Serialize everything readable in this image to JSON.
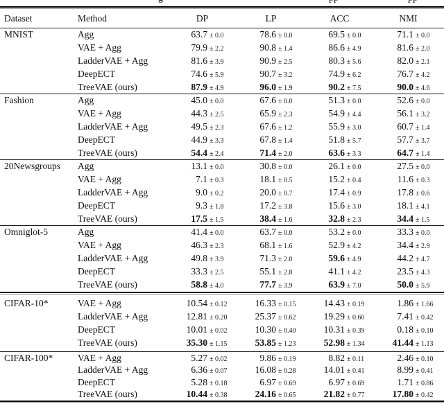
{
  "page": {
    "fragments": [
      "g",
      "pp",
      "pp"
    ]
  },
  "colors": {
    "text": "#111111",
    "rule_black": "#000000",
    "rule_gray": "#9a9a9a"
  },
  "table": {
    "pm_sign": "±",
    "headers": {
      "dataset": "Dataset",
      "method": "Method",
      "metrics": [
        "DP",
        "LP",
        "ACC",
        "NMI"
      ]
    },
    "groups": [
      {
        "dataset": "MNIST",
        "separator_above": "toprule",
        "rows": [
          {
            "method": "Agg",
            "cells": [
              {
                "v": "63.7",
                "s": "0.0",
                "b": false
              },
              {
                "v": "78.6",
                "s": "0.0",
                "b": false
              },
              {
                "v": "69.5",
                "s": "0.0",
                "b": false
              },
              {
                "v": "71.1",
                "s": "0.0",
                "b": false
              }
            ]
          },
          {
            "method": "VAE + Agg",
            "cells": [
              {
                "v": "79.9",
                "s": "2.2",
                "b": false
              },
              {
                "v": "90.8",
                "s": "1.4",
                "b": false
              },
              {
                "v": "86.6",
                "s": "4.9",
                "b": false
              },
              {
                "v": "81.6",
                "s": "2.0",
                "b": false
              }
            ]
          },
          {
            "method": "LadderVAE + Agg",
            "cells": [
              {
                "v": "81.6",
                "s": "3.9",
                "b": false
              },
              {
                "v": "90.9",
                "s": "2.5",
                "b": false
              },
              {
                "v": "80.3",
                "s": "5.6",
                "b": false
              },
              {
                "v": "82.0",
                "s": "2.1",
                "b": false
              }
            ]
          },
          {
            "method": "DeepECT",
            "cells": [
              {
                "v": "74.6",
                "s": "5.9",
                "b": false
              },
              {
                "v": "90.7",
                "s": "3.2",
                "b": false
              },
              {
                "v": "74.9",
                "s": "6.2",
                "b": false
              },
              {
                "v": "76.7",
                "s": "4.2",
                "b": false
              }
            ]
          },
          {
            "method": "TreeVAE (ours)",
            "cells": [
              {
                "v": "87.9",
                "s": "4.9",
                "b": true
              },
              {
                "v": "96.0",
                "s": "1.9",
                "b": true
              },
              {
                "v": "90.2",
                "s": "7.5",
                "b": true
              },
              {
                "v": "90.0",
                "s": "4.6",
                "b": true
              }
            ]
          }
        ]
      },
      {
        "dataset": "Fashion",
        "separator_above": "single",
        "rows": [
          {
            "method": "Agg",
            "cells": [
              {
                "v": "45.0",
                "s": "0.0",
                "b": false
              },
              {
                "v": "67.6",
                "s": "0.0",
                "b": false
              },
              {
                "v": "51.3",
                "s": "0.0",
                "b": false
              },
              {
                "v": "52.6",
                "s": "0.0",
                "b": false
              }
            ]
          },
          {
            "method": "VAE + Agg",
            "cells": [
              {
                "v": "44.3",
                "s": "2.5",
                "b": false
              },
              {
                "v": "65.9",
                "s": "2.3",
                "b": false
              },
              {
                "v": "54.9",
                "s": "4.4",
                "b": false
              },
              {
                "v": "56.1",
                "s": "3.2",
                "b": false
              }
            ]
          },
          {
            "method": "LadderVAE + Agg",
            "cells": [
              {
                "v": "49.5",
                "s": "2.3",
                "b": false
              },
              {
                "v": "67.6",
                "s": "1.2",
                "b": false
              },
              {
                "v": "55.9",
                "s": "3.0",
                "b": false
              },
              {
                "v": "60.7",
                "s": "1.4",
                "b": false
              }
            ]
          },
          {
            "method": "DeepECT",
            "cells": [
              {
                "v": "44.9",
                "s": "3.3",
                "b": false
              },
              {
                "v": "67.8",
                "s": "1.4",
                "b": false
              },
              {
                "v": "51.8",
                "s": "5.7",
                "b": false
              },
              {
                "v": "57.7",
                "s": "3.7",
                "b": false
              }
            ]
          },
          {
            "method": "TreeVAE (ours)",
            "cells": [
              {
                "v": "54.4",
                "s": "2.4",
                "b": true
              },
              {
                "v": "71.4",
                "s": "2.0",
                "b": true
              },
              {
                "v": "63.6",
                "s": "3.3",
                "b": true
              },
              {
                "v": "64.7",
                "s": "1.4",
                "b": true
              }
            ]
          }
        ]
      },
      {
        "dataset": "20Newsgroups",
        "separator_above": "single",
        "rows": [
          {
            "method": "Agg",
            "cells": [
              {
                "v": "13.1",
                "s": "0.0",
                "b": false
              },
              {
                "v": "30.8",
                "s": "0.0",
                "b": false
              },
              {
                "v": "26.1",
                "s": "0.0",
                "b": false
              },
              {
                "v": "27.5",
                "s": "0.0",
                "b": false
              }
            ]
          },
          {
            "method": "VAE + Agg",
            "cells": [
              {
                "v": "7.1",
                "s": "0.3",
                "b": false
              },
              {
                "v": "18.1",
                "s": "0.5",
                "b": false
              },
              {
                "v": "15.2",
                "s": "0.4",
                "b": false
              },
              {
                "v": "11.6",
                "s": "0.3",
                "b": false
              }
            ]
          },
          {
            "method": "LadderVAE + Agg",
            "cells": [
              {
                "v": "9.0",
                "s": "0.2",
                "b": false
              },
              {
                "v": "20.0",
                "s": "0.7",
                "b": false
              },
              {
                "v": "17.4",
                "s": "0.9",
                "b": false
              },
              {
                "v": "17.8",
                "s": "0.6",
                "b": false
              }
            ]
          },
          {
            "method": "DeepECT",
            "cells": [
              {
                "v": "9.3",
                "s": "1.8",
                "b": false
              },
              {
                "v": "17.2",
                "s": "3.8",
                "b": false
              },
              {
                "v": "15.6",
                "s": "3.0",
                "b": false
              },
              {
                "v": "18.1",
                "s": "4.1",
                "b": false
              }
            ]
          },
          {
            "method": "TreeVAE (ours)",
            "cells": [
              {
                "v": "17.5",
                "s": "1.5",
                "b": true
              },
              {
                "v": "38.4",
                "s": "1.6",
                "b": true
              },
              {
                "v": "32.8",
                "s": "2.3",
                "b": true
              },
              {
                "v": "34.4",
                "s": "1.5",
                "b": true
              }
            ]
          }
        ]
      },
      {
        "dataset": "Omniglot-5",
        "separator_above": "single",
        "rows": [
          {
            "method": "Agg",
            "cells": [
              {
                "v": "41.4",
                "s": "0.0",
                "b": false
              },
              {
                "v": "63.7",
                "s": "0.0",
                "b": false
              },
              {
                "v": "53.2",
                "s": "0.0",
                "b": false
              },
              {
                "v": "33.3",
                "s": "0.0",
                "b": false
              }
            ]
          },
          {
            "method": "VAE + Agg",
            "cells": [
              {
                "v": "46.3",
                "s": "2.3",
                "b": false
              },
              {
                "v": "68.1",
                "s": "1.6",
                "b": false
              },
              {
                "v": "52.9",
                "s": "4.2",
                "b": false
              },
              {
                "v": "34.4",
                "s": "2.9",
                "b": false
              }
            ]
          },
          {
            "method": "LadderVAE + Agg",
            "cells": [
              {
                "v": "49.8",
                "s": "3.9",
                "b": false
              },
              {
                "v": "71.3",
                "s": "2.0",
                "b": false
              },
              {
                "v": "59.6",
                "s": "4.9",
                "b": true
              },
              {
                "v": "44.2",
                "s": "4.7",
                "b": false
              }
            ]
          },
          {
            "method": "DeepECT",
            "cells": [
              {
                "v": "33.3",
                "s": "2.5",
                "b": false
              },
              {
                "v": "55.1",
                "s": "2.8",
                "b": false
              },
              {
                "v": "41.1",
                "s": "4.2",
                "b": false
              },
              {
                "v": "23.5",
                "s": "4.3",
                "b": false
              }
            ]
          },
          {
            "method": "TreeVAE (ours)",
            "cells": [
              {
                "v": "58.8",
                "s": "4.0",
                "b": true
              },
              {
                "v": "77.7",
                "s": "3.9",
                "b": true
              },
              {
                "v": "63.9",
                "s": "7.0",
                "b": true
              },
              {
                "v": "50.0",
                "s": "5.9",
                "b": true
              }
            ]
          }
        ]
      },
      {
        "dataset": "CIFAR-10*",
        "separator_above": "double",
        "rows": [
          {
            "method": "VAE + Agg",
            "cells": [
              {
                "v": "10.54",
                "s": "0.12",
                "b": false
              },
              {
                "v": "16.33",
                "s": "0.15",
                "b": false
              },
              {
                "v": "14.43",
                "s": "0.19",
                "b": false
              },
              {
                "v": "1.86",
                "s": "1.66",
                "b": false
              }
            ]
          },
          {
            "method": "LadderVAE + Agg",
            "cells": [
              {
                "v": "12.81",
                "s": "0.20",
                "b": false
              },
              {
                "v": "25.37",
                "s": "0.62",
                "b": false
              },
              {
                "v": "19.29",
                "s": "0.60",
                "b": false
              },
              {
                "v": "7.41",
                "s": "0.42",
                "b": false
              }
            ]
          },
          {
            "method": "DeepECT",
            "cells": [
              {
                "v": "10.01",
                "s": "0.02",
                "b": false
              },
              {
                "v": "10.30",
                "s": "0.40",
                "b": false
              },
              {
                "v": "10.31",
                "s": "0.39",
                "b": false
              },
              {
                "v": "0.18",
                "s": "0.10",
                "b": false
              }
            ]
          },
          {
            "method": "TreeVAE (ours)",
            "cells": [
              {
                "v": "35.30",
                "s": "1.15",
                "b": true
              },
              {
                "v": "53.85",
                "s": "1.23",
                "b": true
              },
              {
                "v": "52.98",
                "s": "1.34",
                "b": true
              },
              {
                "v": "41.44",
                "s": "1.13",
                "b": true
              }
            ]
          }
        ]
      },
      {
        "dataset": "CIFAR-100*",
        "separator_above": "single",
        "rows": [
          {
            "method": "VAE + Agg",
            "cells": [
              {
                "v": "5.27",
                "s": "0.02",
                "b": false
              },
              {
                "v": "9.86",
                "s": "0.19",
                "b": false
              },
              {
                "v": "8.82",
                "s": "0.11",
                "b": false
              },
              {
                "v": "2.46",
                "s": "0.10",
                "b": false
              }
            ]
          },
          {
            "method": "LadderVAE + Agg",
            "cells": [
              {
                "v": "6.36",
                "s": "0.07",
                "b": false
              },
              {
                "v": "16.08",
                "s": "0.28",
                "b": false
              },
              {
                "v": "14.01",
                "s": "0.41",
                "b": false
              },
              {
                "v": "8.99",
                "s": "0.41",
                "b": false
              }
            ]
          },
          {
            "method": "DeepECT",
            "cells": [
              {
                "v": "5.28",
                "s": "0.18",
                "b": false
              },
              {
                "v": "6.97",
                "s": "0.69",
                "b": false
              },
              {
                "v": "6.97",
                "s": "0.69",
                "b": false
              },
              {
                "v": "1.71",
                "s": "0.86",
                "b": false
              }
            ]
          },
          {
            "method": "TreeVAE (ours)",
            "cells": [
              {
                "v": "10.44",
                "s": "0.38",
                "b": true
              },
              {
                "v": "24.16",
                "s": "0.65",
                "b": true
              },
              {
                "v": "21.82",
                "s": "0.77",
                "b": true
              },
              {
                "v": "17.80",
                "s": "0.42",
                "b": true
              }
            ]
          }
        ]
      }
    ]
  }
}
